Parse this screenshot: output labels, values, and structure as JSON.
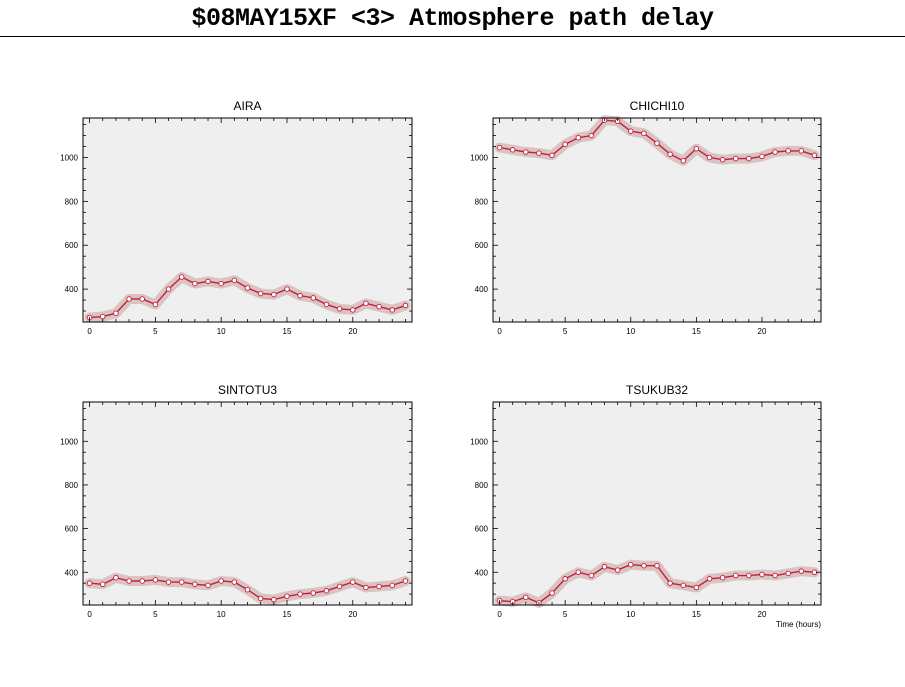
{
  "title": "$08MAY15XF <3>  Atmosphere path delay",
  "colors": {
    "line": "#c41e3a",
    "band": "#d9c4c4",
    "panel_bg": "#efefef",
    "frame": "#000000"
  },
  "chart_data": [
    {
      "type": "line",
      "title": "AIRA",
      "xlabel": "",
      "xlim": [
        -0.5,
        24.5
      ],
      "ylim": [
        250,
        1180
      ],
      "xticks": [
        0,
        5,
        10,
        15,
        20
      ],
      "yticks": [
        400,
        600,
        800,
        1000
      ],
      "grid": false,
      "x": [
        0,
        1,
        2,
        3,
        4,
        5,
        6,
        7,
        8,
        9,
        10,
        11,
        12,
        13,
        14,
        15,
        16,
        17,
        18,
        19,
        20,
        21,
        22,
        23,
        24
      ],
      "series": [
        {
          "values": [
            270,
            275,
            290,
            355,
            355,
            330,
            400,
            455,
            425,
            435,
            425,
            440,
            405,
            380,
            375,
            400,
            370,
            360,
            330,
            310,
            305,
            335,
            320,
            305,
            325
          ]
        }
      ]
    },
    {
      "type": "line",
      "title": "CHICHI10",
      "xlabel": "",
      "xlim": [
        -0.5,
        24.5
      ],
      "ylim": [
        250,
        1180
      ],
      "xticks": [
        0,
        5,
        10,
        15,
        20
      ],
      "yticks": [
        400,
        600,
        800,
        1000
      ],
      "grid": false,
      "x": [
        0,
        1,
        2,
        3,
        4,
        5,
        6,
        7,
        8,
        9,
        10,
        11,
        12,
        13,
        14,
        15,
        16,
        17,
        18,
        19,
        20,
        21,
        22,
        23,
        24
      ],
      "series": [
        {
          "values": [
            1045,
            1035,
            1025,
            1020,
            1010,
            1060,
            1090,
            1100,
            1170,
            1165,
            1120,
            1110,
            1065,
            1015,
            985,
            1040,
            1000,
            990,
            995,
            995,
            1005,
            1025,
            1030,
            1030,
            1010
          ]
        }
      ]
    },
    {
      "type": "line",
      "title": "SINTOTU3",
      "xlabel": "",
      "xlim": [
        -0.5,
        24.5
      ],
      "ylim": [
        250,
        1180
      ],
      "xticks": [
        0,
        5,
        10,
        15,
        20
      ],
      "yticks": [
        400,
        600,
        800,
        1000
      ],
      "grid": false,
      "x": [
        0,
        1,
        2,
        3,
        4,
        5,
        6,
        7,
        8,
        9,
        10,
        11,
        12,
        13,
        14,
        15,
        16,
        17,
        18,
        19,
        20,
        21,
        22,
        23,
        24
      ],
      "series": [
        {
          "values": [
            350,
            345,
            375,
            360,
            360,
            365,
            355,
            355,
            345,
            340,
            360,
            355,
            320,
            280,
            275,
            290,
            300,
            305,
            315,
            335,
            355,
            330,
            335,
            340,
            360
          ]
        }
      ]
    },
    {
      "type": "line",
      "title": "TSUKUB32",
      "xlabel": "Time (hours)",
      "xlim": [
        -0.5,
        24.5
      ],
      "ylim": [
        250,
        1180
      ],
      "xticks": [
        0,
        5,
        10,
        15,
        20
      ],
      "yticks": [
        400,
        600,
        800,
        1000
      ],
      "grid": false,
      "x": [
        0,
        1,
        2,
        3,
        4,
        5,
        6,
        7,
        8,
        9,
        10,
        11,
        12,
        13,
        14,
        15,
        16,
        17,
        18,
        19,
        20,
        21,
        22,
        23,
        24
      ],
      "series": [
        {
          "values": [
            270,
            265,
            285,
            260,
            305,
            370,
            400,
            385,
            425,
            410,
            435,
            430,
            430,
            350,
            340,
            330,
            370,
            375,
            385,
            385,
            390,
            385,
            395,
            405,
            400
          ]
        }
      ]
    }
  ]
}
